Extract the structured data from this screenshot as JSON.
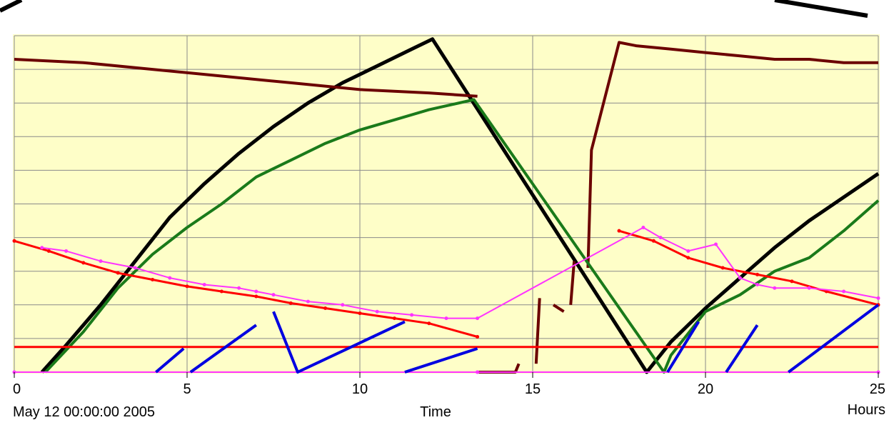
{
  "chart_data": {
    "type": "line",
    "title": "",
    "xlabel": "Time",
    "x_unit": "Hours",
    "start_label": "May 12 00:00:00 2005",
    "xlim": [
      0,
      25
    ],
    "ylim": [
      0,
      10
    ],
    "x_ticks": [
      "0",
      "5",
      "10",
      "15",
      "20",
      "25"
    ],
    "y_gridlines": [
      1,
      2,
      3,
      4,
      5,
      6,
      7,
      8,
      9,
      10
    ],
    "grid": true,
    "legend": "none",
    "colors": {
      "background": "#fefec8",
      "grid": "#8a8a8a",
      "black": "#000000",
      "maroon": "#6b0000",
      "green": "#1a7a1a",
      "red": "#ff0000",
      "magenta": "#ff33ff",
      "blue": "#0000e0"
    },
    "series": [
      {
        "color": "black",
        "x": [
          0.8,
          1.5,
          2.5,
          3.5,
          4.5,
          5.5,
          6.5,
          7.5,
          8.5,
          9.5,
          10.5,
          11.5,
          12.1,
          18.3,
          19,
          20,
          21,
          22,
          23,
          24,
          25
        ],
        "y": [
          0,
          0.8,
          2.0,
          3.3,
          4.6,
          5.6,
          6.5,
          7.3,
          8.0,
          8.6,
          9.1,
          9.6,
          9.9,
          0,
          0.9,
          1.9,
          2.8,
          3.7,
          4.5,
          5.2,
          5.9
        ]
      },
      {
        "color": "maroon",
        "x": [
          0,
          2,
          4,
          6,
          8,
          10,
          12,
          13.4,
          13.4,
          14.5,
          14.6,
          15.1,
          15.2,
          15.6,
          15.9,
          16.1,
          16.2,
          16.6,
          16.7,
          17.5,
          18,
          19,
          20,
          21,
          22,
          23,
          24,
          25
        ],
        "y": [
          9.3,
          9.2,
          9.0,
          8.8,
          8.6,
          8.4,
          8.3,
          8.2,
          0,
          0,
          0.25,
          0.25,
          2.2,
          2.0,
          1.8,
          2.0,
          3.3,
          3.1,
          6.6,
          9.8,
          9.7,
          9.6,
          9.5,
          9.4,
          9.3,
          9.3,
          9.2,
          9.2
        ],
        "gaps_after_index": [
          7,
          10,
          12,
          14,
          16
        ]
      },
      {
        "color": "green",
        "x": [
          0.9,
          2,
          3,
          4,
          5,
          6,
          7,
          8,
          9,
          10,
          11,
          12,
          13.3,
          18.8,
          19,
          20,
          21,
          22,
          23,
          24,
          25
        ],
        "y": [
          0,
          1.2,
          2.5,
          3.5,
          4.3,
          5.0,
          5.8,
          6.3,
          6.8,
          7.2,
          7.5,
          7.8,
          8.1,
          0,
          0.5,
          1.8,
          2.3,
          3.0,
          3.4,
          4.2,
          5.1
        ]
      },
      {
        "color": "red",
        "x": [
          0,
          1,
          2,
          3,
          4,
          5,
          6,
          7,
          8,
          9,
          10,
          11,
          12,
          13.4,
          17.5,
          18.5,
          19.5,
          20.5,
          21.5,
          22.5,
          23.5,
          25
        ],
        "y": [
          3.9,
          3.6,
          3.25,
          2.95,
          2.75,
          2.55,
          2.4,
          2.25,
          2.05,
          1.9,
          1.75,
          1.6,
          1.45,
          1.05,
          4.2,
          3.9,
          3.4,
          3.1,
          2.9,
          2.7,
          2.4,
          2.0
        ],
        "gaps_after_index": [
          13
        ]
      },
      {
        "color": "red",
        "x": [
          0,
          25
        ],
        "y": [
          0.75,
          0.75
        ]
      },
      {
        "color": "magenta",
        "x": [
          0.8,
          1.5,
          2.5,
          3.5,
          4.5,
          5.5,
          6.5,
          7.0,
          7.5,
          8.5,
          9.5,
          10.5,
          11.5,
          12.5,
          13.4,
          18.2,
          18.7,
          19.5,
          20.3,
          21,
          21.5,
          22,
          23,
          24,
          25
        ],
        "y": [
          3.7,
          3.6,
          3.3,
          3.1,
          2.8,
          2.6,
          2.5,
          2.4,
          2.3,
          2.1,
          2.0,
          1.8,
          1.7,
          1.6,
          1.6,
          4.3,
          4.0,
          3.6,
          3.8,
          2.8,
          2.6,
          2.5,
          2.5,
          2.4,
          2.2
        ]
      },
      {
        "color": "magenta",
        "x": [
          0,
          13.4,
          13.4,
          25
        ],
        "y": [
          0,
          0,
          0,
          0
        ]
      },
      {
        "color": "blue",
        "x": [
          4.1,
          4.9,
          5.1,
          7.0,
          7.5,
          8.2,
          11.3,
          11.3,
          13.4,
          18.9,
          19.8,
          20.6,
          21.5,
          22.4,
          25
        ],
        "y": [
          0,
          0.7,
          0,
          1.4,
          1.8,
          0,
          1.5,
          0,
          0.7,
          0,
          1.5,
          0,
          1.4,
          0,
          2.0
        ],
        "gaps_after_index": [
          1,
          3,
          6,
          8,
          10,
          12
        ]
      }
    ]
  }
}
